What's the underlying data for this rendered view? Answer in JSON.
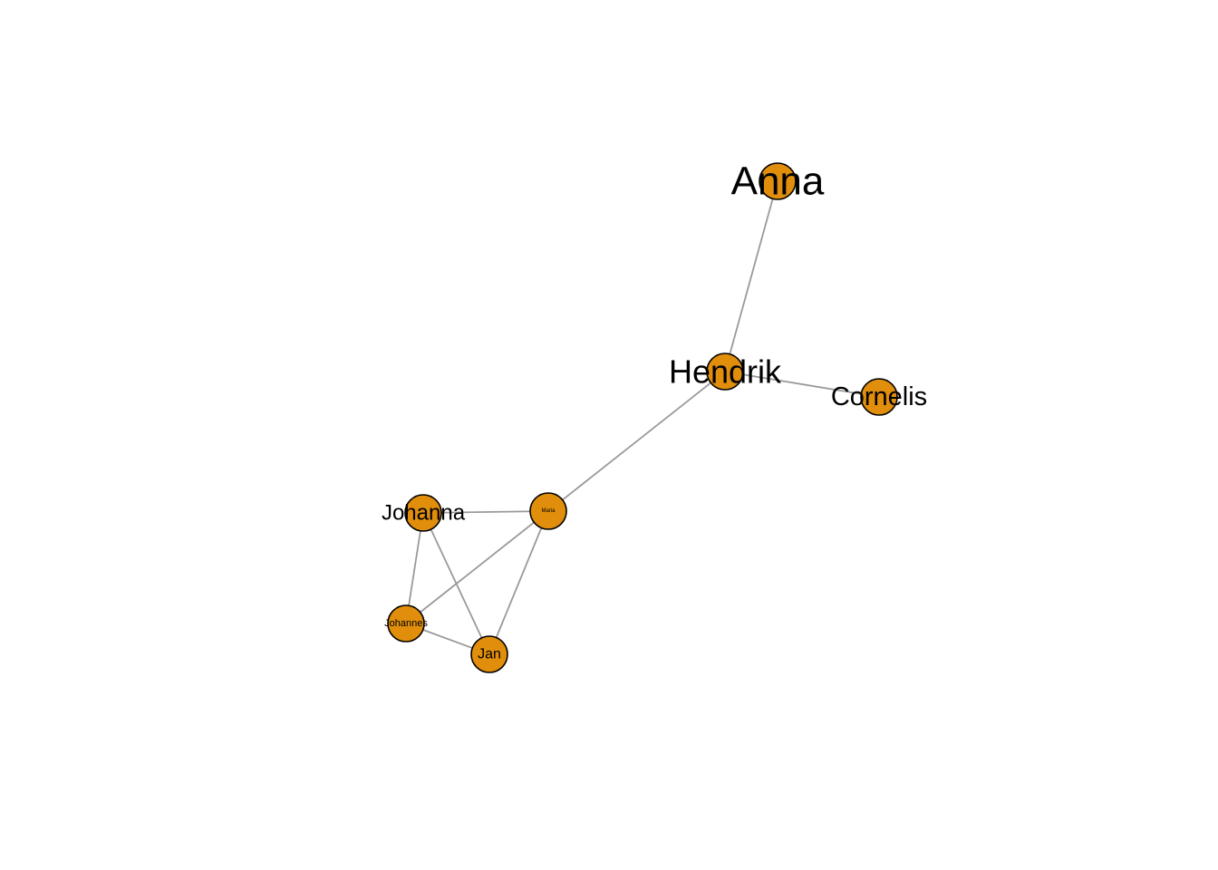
{
  "graph": {
    "node_color": "#E08E0B",
    "edge_color": "#9A9A9A",
    "nodes": [
      {
        "id": "anna",
        "label": "Anna"
      },
      {
        "id": "hendrik",
        "label": "Hendrik"
      },
      {
        "id": "cornelis",
        "label": "Cornelis"
      },
      {
        "id": "maria",
        "label": "Maria"
      },
      {
        "id": "johanna",
        "label": "Johanna"
      },
      {
        "id": "johannes",
        "label": "Johannes"
      },
      {
        "id": "jan",
        "label": "Jan"
      }
    ],
    "edges": [
      {
        "source": "anna",
        "target": "hendrik"
      },
      {
        "source": "hendrik",
        "target": "cornelis"
      },
      {
        "source": "hendrik",
        "target": "maria"
      },
      {
        "source": "maria",
        "target": "johanna"
      },
      {
        "source": "maria",
        "target": "johannes"
      },
      {
        "source": "maria",
        "target": "jan"
      },
      {
        "source": "johanna",
        "target": "johannes"
      },
      {
        "source": "johanna",
        "target": "jan"
      },
      {
        "source": "johannes",
        "target": "jan"
      }
    ]
  }
}
